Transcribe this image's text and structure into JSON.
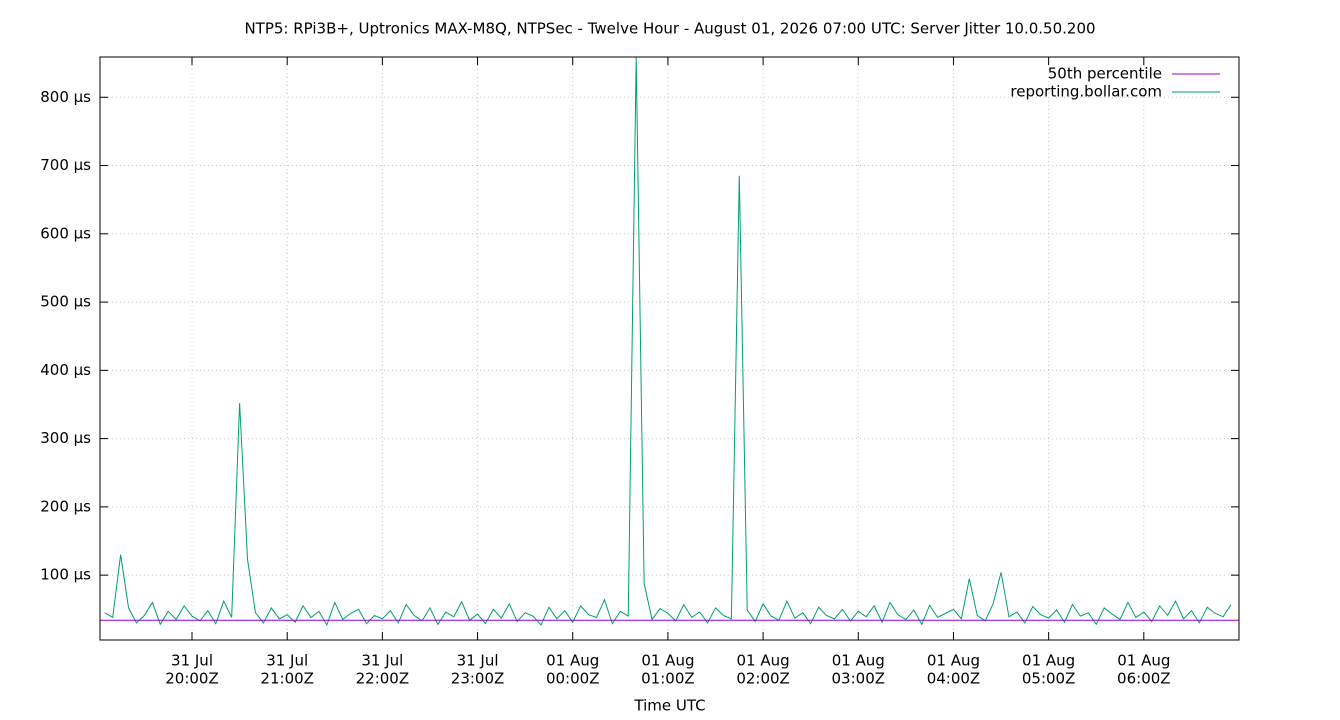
{
  "chart_data": {
    "type": "line",
    "title": "NTP5: RPi3B+, Uptronics MAX-M8Q, NTPSec - Twelve Hour - August 01, 2026 07:00 UTC: Server Jitter 10.0.50.200",
    "x_label": "Time UTC",
    "xlim": [
      "2026-07-31T19:02Z",
      "2026-08-01T07:00Z"
    ],
    "xticks": [
      {
        "value": "2026-07-31T20:00Z",
        "label": [
          "31 Jul",
          "20:00Z"
        ]
      },
      {
        "value": "2026-07-31T21:00Z",
        "label": [
          "31 Jul",
          "21:00Z"
        ]
      },
      {
        "value": "2026-07-31T22:00Z",
        "label": [
          "31 Jul",
          "22:00Z"
        ]
      },
      {
        "value": "2026-07-31T23:00Z",
        "label": [
          "31 Jul",
          "23:00Z"
        ]
      },
      {
        "value": "2026-08-01T00:00Z",
        "label": [
          "01 Aug",
          "00:00Z"
        ]
      },
      {
        "value": "2026-08-01T01:00Z",
        "label": [
          "01 Aug",
          "01:00Z"
        ]
      },
      {
        "value": "2026-08-01T02:00Z",
        "label": [
          "01 Aug",
          "02:00Z"
        ]
      },
      {
        "value": "2026-08-01T03:00Z",
        "label": [
          "01 Aug",
          "03:00Z"
        ]
      },
      {
        "value": "2026-08-01T04:00Z",
        "label": [
          "01 Aug",
          "04:00Z"
        ]
      },
      {
        "value": "2026-08-01T05:00Z",
        "label": [
          "01 Aug",
          "05:00Z"
        ]
      },
      {
        "value": "2026-08-01T06:00Z",
        "label": [
          "01 Aug",
          "06:00Z"
        ]
      }
    ],
    "ylim": [
      5,
      859
    ],
    "yticks": [
      {
        "value": 100,
        "label": "100 µs"
      },
      {
        "value": 200,
        "label": "200 µs"
      },
      {
        "value": 300,
        "label": "300 µs"
      },
      {
        "value": 400,
        "label": "400 µs"
      },
      {
        "value": 500,
        "label": "500 µs"
      },
      {
        "value": 600,
        "label": "600 µs"
      },
      {
        "value": 700,
        "label": "700 µs"
      },
      {
        "value": 800,
        "label": "800 µs"
      }
    ],
    "grid": true,
    "legend": "top-right",
    "series": [
      {
        "name": "50th percentile",
        "color": "#9400d3",
        "x": [
          "2026-07-31T19:02Z",
          "2026-08-01T07:00Z"
        ],
        "values": [
          34,
          34
        ]
      },
      {
        "name": "reporting.bollar.com",
        "color": "#009e73",
        "x_start": "2026-07-31T19:05Z",
        "x_step_minutes": 5,
        "values": [
          45,
          38,
          130,
          52,
          30,
          41,
          60,
          28,
          47,
          35,
          55,
          40,
          33,
          48,
          29,
          62,
          38,
          352,
          123,
          45,
          30,
          52,
          36,
          42,
          31,
          55,
          38,
          47,
          27,
          60,
          35,
          44,
          50,
          29,
          41,
          36,
          48,
          30,
          57,
          41,
          33,
          52,
          28,
          46,
          39,
          61,
          34,
          43,
          29,
          50,
          37,
          58,
          32,
          45,
          40,
          27,
          53,
          36,
          48,
          31,
          55,
          42,
          38,
          64,
          29,
          47,
          40,
          859,
          88,
          35,
          51,
          44,
          33,
          57,
          38,
          46,
          30,
          52,
          41,
          36,
          685,
          49,
          32,
          58,
          40,
          34,
          62,
          37,
          45,
          29,
          53,
          41,
          36,
          50,
          33,
          47,
          39,
          55,
          31,
          60,
          42,
          35,
          49,
          28,
          56,
          38,
          44,
          50,
          36,
          95,
          41,
          33,
          58,
          104,
          39,
          46,
          30,
          54,
          42,
          37,
          49,
          31,
          57,
          40,
          45,
          28,
          52,
          43,
          35,
          60,
          38,
          46,
          32,
          55,
          41,
          62,
          36,
          48,
          30,
          53,
          44,
          39,
          57
        ]
      }
    ]
  }
}
